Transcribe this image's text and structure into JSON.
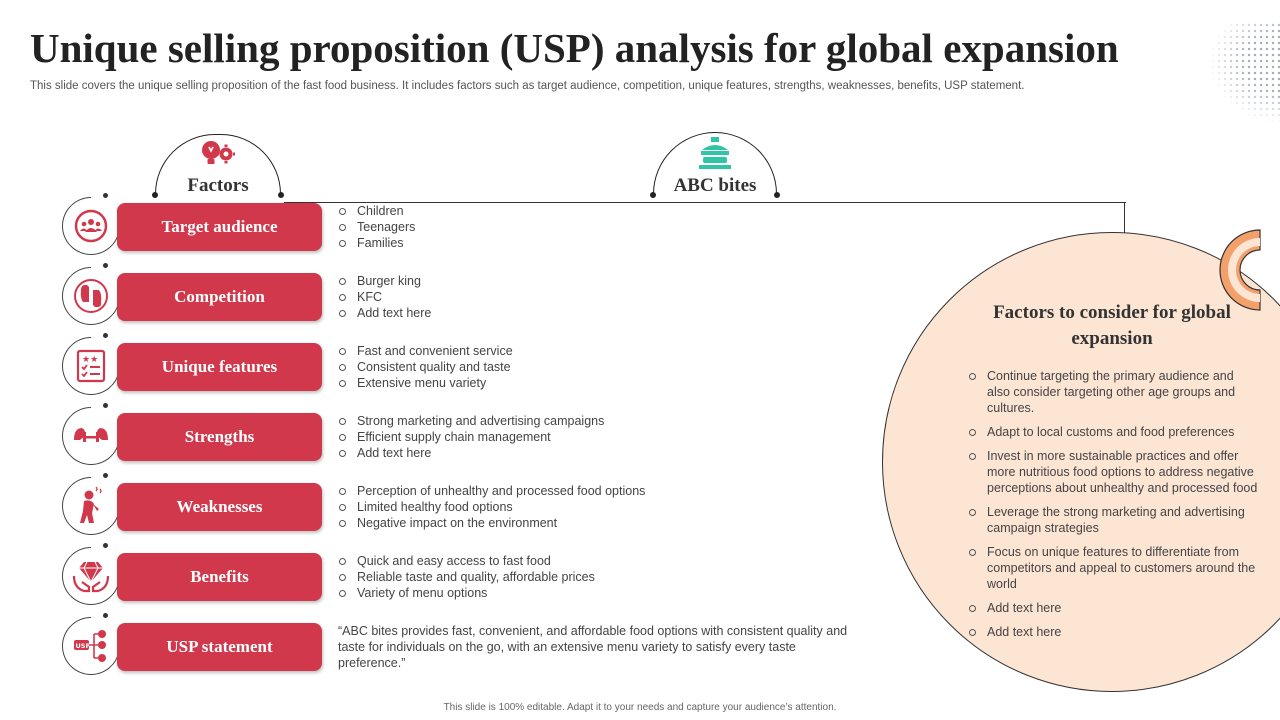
{
  "title": "Unique selling proposition (USP) analysis for global expansion",
  "subtitle": "This slide covers the unique selling proposition of the fast food business. It includes factors such as target audience, competition, unique features, strengths, weaknesses, benefits, USP statement.",
  "headers": {
    "factors": "Factors",
    "brand": "ABC bites"
  },
  "colors": {
    "accent": "#d1384c",
    "peach": "#fde5d4",
    "orange": "#f4a06a",
    "teal": "#2ec4a6"
  },
  "rows": [
    {
      "label": "Target audience",
      "icon": "team-target-icon",
      "items": [
        "Children",
        "Teenagers",
        "Families"
      ]
    },
    {
      "label": "Competition",
      "icon": "boxing-gloves-icon",
      "items": [
        "Burger king",
        "KFC",
        "Add text here"
      ]
    },
    {
      "label": "Unique features",
      "icon": "checklist-stars-icon",
      "items": [
        "Fast and convenient  service",
        "Consistent quality and taste",
        "Extensive menu variety"
      ]
    },
    {
      "label": "Strengths",
      "icon": "dumbbell-arms-icon",
      "items": [
        "Strong marketing and advertising  campaigns",
        "Efficient supply chain management",
        "Add text here"
      ]
    },
    {
      "label": "Weaknesses",
      "icon": "tired-person-icon",
      "items": [
        "Perception of unhealthy and processed food options",
        "Limited healthy food options",
        "Negative  impact on the environment"
      ]
    },
    {
      "label": "Benefits",
      "icon": "diamond-hands-icon",
      "items": [
        "Quick and easy access to fast food",
        "Reliable taste and quality, affordable  prices",
        "Variety of menu options"
      ]
    },
    {
      "label": "USP statement",
      "icon": "usp-network-icon",
      "text": "“ABC bites provides  fast,  convenient,  and affordable  food options with consistent quality and taste for individuals  on the go,  with an extensive  menu variety to satisfy every taste preference.”"
    }
  ],
  "panel": {
    "title": "Factors to consider  for global expansion",
    "items": [
      "Continue  targeting the primary audience and also consider targeting other age groups and cultures.",
      "Adapt to local customs and food preferences",
      "Invest  in more sustainable practices and offer more nutritious food options to address negative  perceptions about unhealthy and processed food",
      "Leverage  the strong marketing and advertising  campaign strategies",
      "Focus on unique features  to differentiate from competitors and appeal to customers around the world",
      "Add text here",
      "Add text here"
    ]
  },
  "footer": "This slide is 100% editable.  Adapt it to your needs and capture your audience’s attention."
}
